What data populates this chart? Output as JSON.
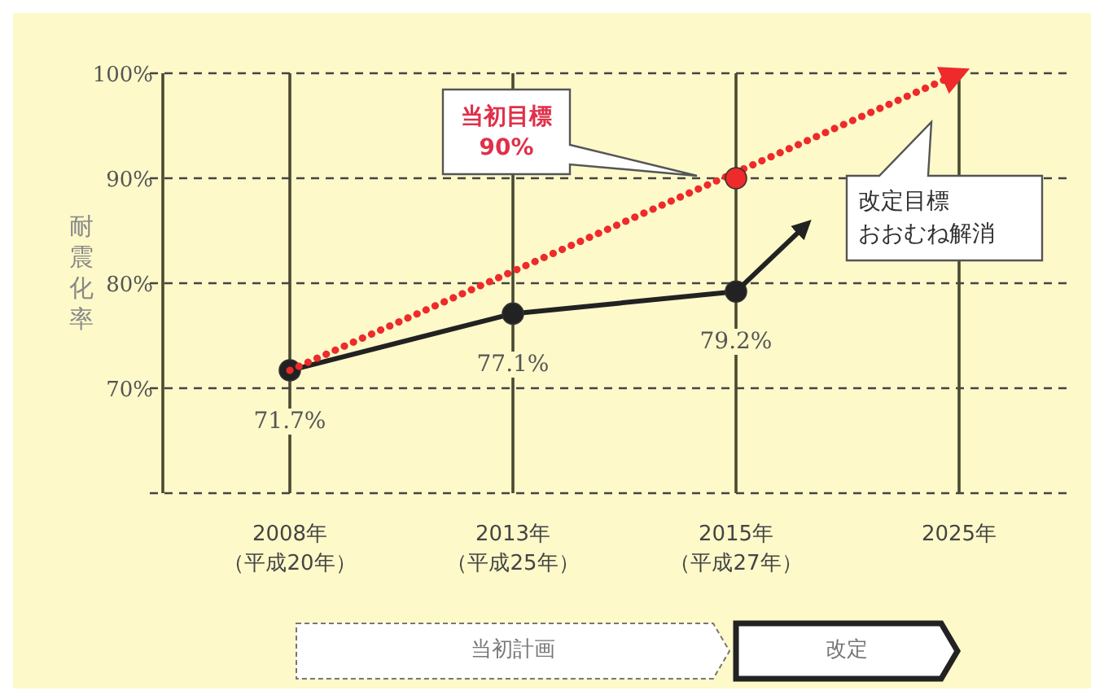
{
  "chart_data": {
    "type": "line",
    "ylabel": "耐震化率",
    "categories": [
      "2008年（平成20年）",
      "2013年（平成25年）",
      "2015年（平成27年）",
      "2025年"
    ],
    "ylim": [
      60,
      100
    ],
    "yticks": [
      {
        "value": 60,
        "label": null
      },
      {
        "value": 70,
        "label": "70%"
      },
      {
        "value": 80,
        "label": "80%"
      },
      {
        "value": 90,
        "label": "90%"
      },
      {
        "value": 100,
        "label": "100%"
      }
    ],
    "grid": true,
    "series": [
      {
        "color": "#222222",
        "values": [
          71.7,
          77.1,
          79.2,
          null
        ],
        "marker": "circle",
        "line_style": "solid",
        "value_labels": [
          "71.7%",
          "77.1%",
          "79.2%",
          null
        ]
      },
      {
        "color": "#ee2a2a",
        "values": [
          71.7,
          null,
          null,
          100
        ],
        "marker": "none",
        "line_style": "dotted"
      },
      {
        "type": "scatter",
        "color": "#ee2a2a",
        "x": [
          "2015年（平成27年）"
        ],
        "values": [
          90
        ],
        "marker": "circle"
      }
    ],
    "annotations": [
      "当初目標 90%",
      "改定目標",
      "おおむね解消",
      "当初計画",
      "改定"
    ]
  }
}
